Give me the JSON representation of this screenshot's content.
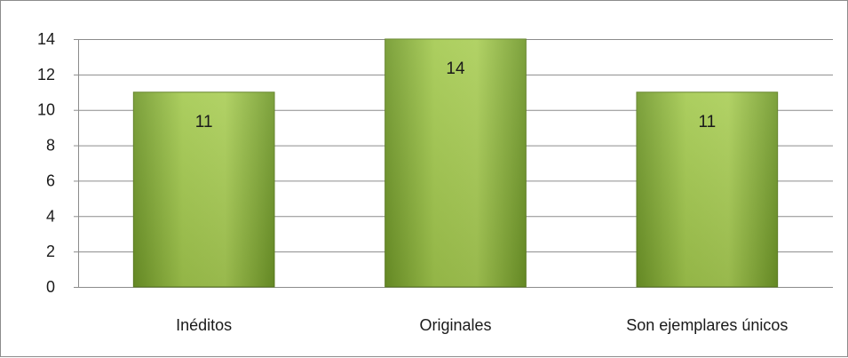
{
  "chart_data": {
    "type": "bar",
    "title": "",
    "xlabel": "",
    "ylabel": "",
    "categories": [
      "Inéditos",
      "Originales",
      "Son ejemplares únicos"
    ],
    "values": [
      11,
      14,
      11
    ],
    "data_labels": [
      "11",
      "14",
      "11"
    ],
    "ylim": [
      0,
      14
    ],
    "yticks": [
      "0",
      "2",
      "4",
      "6",
      "8",
      "10",
      "12",
      "14"
    ],
    "grid": true,
    "legend": "none",
    "bar_color": "#8bb43a",
    "bar_edge_color": "#5e7f22",
    "grid_color": "#8c8c8c"
  }
}
